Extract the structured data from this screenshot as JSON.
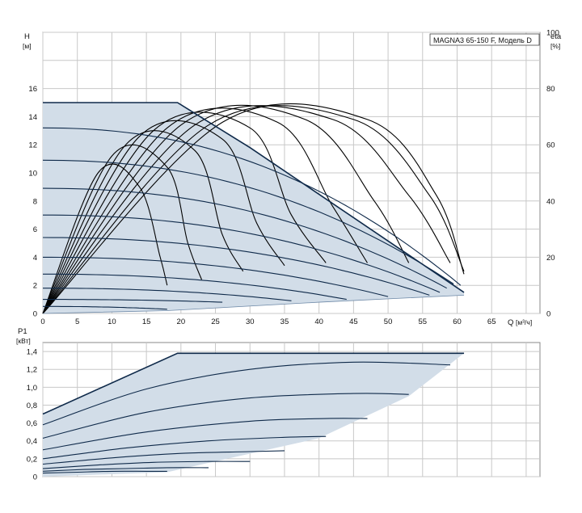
{
  "chart_data": [
    {
      "id": "head",
      "type": "line",
      "title": "MAGNA3 65-150 F, Модель D",
      "xlabel": "Q",
      "xunit": "[м³/ч]",
      "ylabel": "H",
      "yunit": "[м]",
      "y2label": "eta",
      "y2unit": "[%]",
      "xlim": [
        0,
        72
      ],
      "ylim": [
        0,
        20
      ],
      "y2lim": [
        0,
        100
      ],
      "x_ticks": [
        "0",
        "5",
        "10",
        "15",
        "20",
        "25",
        "30",
        "35",
        "40",
        "45",
        "50",
        "55",
        "60",
        "65"
      ],
      "y_ticks": [
        "0",
        "2",
        "4",
        "6",
        "8",
        "10",
        "12",
        "14",
        "16"
      ],
      "y2_ticks": [
        "0",
        "20",
        "40",
        "60",
        "80",
        "100"
      ],
      "grid": true,
      "fill_color": "#d2dde8",
      "curve_color": "#0f2a4a",
      "envelope": {
        "name": "max head envelope",
        "x": [
          0,
          19.5,
          30,
          61
        ],
        "y": [
          15,
          15,
          11.8,
          1.5
        ]
      },
      "min_curve": {
        "name": "min system curve",
        "x": [
          0,
          18,
          40,
          61
        ],
        "y": [
          0,
          0.2,
          0.8,
          1.3
        ]
      },
      "speed_curves": [
        {
          "h0": 13.2,
          "qmax": 60.5,
          "hend": 2.0
        },
        {
          "h0": 10.9,
          "qmax": 59.5,
          "hend": 2.1
        },
        {
          "h0": 8.9,
          "qmax": 58.5,
          "hend": 1.8
        },
        {
          "h0": 7.0,
          "qmax": 57.5,
          "hend": 1.5
        },
        {
          "h0": 5.4,
          "qmax": 56.0,
          "hend": 1.3
        },
        {
          "h0": 4.0,
          "qmax": 50.0,
          "hend": 1.2
        },
        {
          "h0": 2.8,
          "qmax": 44.0,
          "hend": 1.0
        },
        {
          "h0": 1.8,
          "qmax": 36.0,
          "hend": 0.9
        },
        {
          "h0": 1.0,
          "qmax": 26.0,
          "hend": 0.8
        },
        {
          "h0": 0.5,
          "qmax": 18.0,
          "hend": 0.3
        }
      ],
      "efficiency_curves": [
        {
          "x": [
            0,
            8,
            14,
            17,
            18
          ],
          "eta": [
            0,
            50,
            45,
            20,
            10
          ]
        },
        {
          "x": [
            0,
            10,
            18,
            21,
            23
          ],
          "eta": [
            0,
            56,
            52,
            25,
            12
          ]
        },
        {
          "x": [
            0,
            12,
            22,
            26,
            29
          ],
          "eta": [
            0,
            60,
            58,
            28,
            15
          ]
        },
        {
          "x": [
            0,
            14,
            26,
            31,
            35
          ],
          "eta": [
            0,
            63,
            62,
            32,
            17
          ]
        },
        {
          "x": [
            0,
            16,
            30,
            36,
            41
          ],
          "eta": [
            0,
            65,
            66,
            35,
            18
          ]
        },
        {
          "x": [
            0,
            18,
            34,
            42,
            47
          ],
          "eta": [
            0,
            66,
            68,
            38,
            18
          ]
        },
        {
          "x": [
            0,
            20,
            38,
            48,
            53
          ],
          "eta": [
            0,
            67,
            69,
            40,
            18
          ]
        },
        {
          "x": [
            0,
            22,
            42,
            53,
            59
          ],
          "eta": [
            0,
            67,
            69,
            42,
            18
          ]
        },
        {
          "x": [
            0,
            24,
            45,
            56,
            61
          ],
          "eta": [
            0,
            67,
            69,
            42,
            15
          ]
        },
        {
          "x": [
            0,
            26,
            47,
            57,
            61
          ],
          "eta": [
            0,
            68,
            69,
            42,
            14
          ]
        }
      ]
    },
    {
      "id": "power",
      "type": "line",
      "ylabel": "P1",
      "yunit": "[кВт]",
      "xlim": [
        0,
        72
      ],
      "ylim": [
        0,
        1.4
      ],
      "y_ticks": [
        "0",
        "0,2",
        "0,4",
        "0,6",
        "0,8",
        "1,0",
        "1,2",
        "1,4"
      ],
      "grid": true,
      "envelope": {
        "name": "max power envelope",
        "x": [
          0,
          19.5,
          30,
          61
        ],
        "y": [
          0.7,
          1.38,
          1.38,
          1.38
        ]
      },
      "envelope_lower": {
        "x": [
          0,
          18,
          40,
          53,
          61
        ],
        "y": [
          0,
          0.05,
          0.43,
          0.9,
          1.38
        ]
      },
      "power_curves": [
        {
          "x": [
            0,
            15,
            30,
            45,
            59
          ],
          "y": [
            0.58,
            0.98,
            1.2,
            1.28,
            1.25
          ]
        },
        {
          "x": [
            0,
            15,
            30,
            45,
            53
          ],
          "y": [
            0.43,
            0.72,
            0.88,
            0.93,
            0.92
          ]
        },
        {
          "x": [
            0,
            15,
            30,
            41,
            47
          ],
          "y": [
            0.3,
            0.5,
            0.62,
            0.65,
            0.65
          ]
        },
        {
          "x": [
            0,
            12,
            24,
            35,
            41
          ],
          "y": [
            0.2,
            0.32,
            0.4,
            0.44,
            0.45
          ]
        },
        {
          "x": [
            0,
            10,
            20,
            30,
            35
          ],
          "y": [
            0.14,
            0.21,
            0.26,
            0.28,
            0.29
          ]
        },
        {
          "x": [
            0,
            8,
            16,
            24,
            30
          ],
          "y": [
            0.09,
            0.13,
            0.16,
            0.17,
            0.17
          ]
        },
        {
          "x": [
            0,
            6,
            12,
            18,
            24
          ],
          "y": [
            0.06,
            0.08,
            0.09,
            0.1,
            0.1
          ]
        },
        {
          "x": [
            0,
            5,
            10,
            15,
            18
          ],
          "y": [
            0.04,
            0.05,
            0.06,
            0.06,
            0.06
          ]
        }
      ]
    }
  ]
}
